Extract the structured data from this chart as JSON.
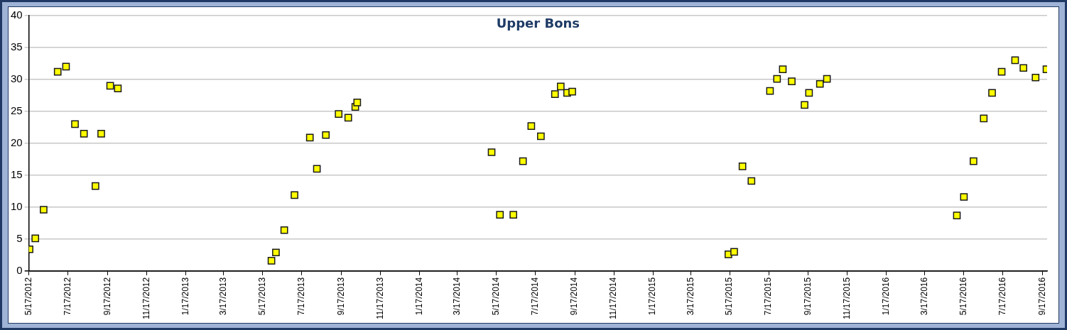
{
  "chart_data": {
    "type": "scatter",
    "title": "Upper Bons",
    "x": [
      "2012-05-18",
      "2012-05-27",
      "2012-06-09",
      "2012-07-01",
      "2012-07-14",
      "2012-07-28",
      "2012-08-11",
      "2012-08-29",
      "2012-09-07",
      "2012-09-21",
      "2012-10-03",
      "2013-05-31",
      "2013-06-07",
      "2013-06-20",
      "2013-07-06",
      "2013-07-30",
      "2013-08-10",
      "2013-08-24",
      "2013-09-13",
      "2013-09-28",
      "2013-10-09",
      "2013-10-12",
      "2014-05-10",
      "2014-05-23",
      "2014-06-13",
      "2014-06-28",
      "2014-07-11",
      "2014-07-26",
      "2014-08-17",
      "2014-08-26",
      "2014-09-05",
      "2014-09-13",
      "2015-05-15",
      "2015-05-24",
      "2015-06-06",
      "2015-06-20",
      "2015-07-19",
      "2015-07-30",
      "2015-08-08",
      "2015-08-22",
      "2015-09-11",
      "2015-09-18",
      "2015-10-05",
      "2015-10-16",
      "2016-05-06",
      "2016-05-17",
      "2016-06-01",
      "2016-06-17",
      "2016-06-30",
      "2016-07-15",
      "2016-08-05",
      "2016-08-18",
      "2016-09-06",
      "2016-09-23"
    ],
    "series": [
      {
        "color": "#ffff00",
        "values": [
          3.4,
          5.1,
          9.6,
          31.2,
          32.0,
          23.0,
          21.5,
          13.3,
          21.5,
          29.0,
          28.6,
          1.6,
          2.9,
          6.4,
          11.9,
          20.9,
          16.0,
          21.3,
          24.6,
          24.0,
          25.7,
          26.4,
          18.6,
          8.8,
          8.8,
          17.2,
          22.7,
          21.1,
          27.7,
          28.9,
          27.9,
          28.1,
          2.6,
          3.0,
          16.4,
          14.1,
          28.2,
          30.1,
          31.6,
          29.7,
          26.0,
          27.9,
          29.3,
          30.1,
          8.7,
          11.6,
          17.2,
          23.9,
          27.9,
          31.2,
          33.0,
          31.8,
          30.3,
          31.6
        ]
      }
    ],
    "xlim": [
      "2012-05-17",
      "2016-09-24"
    ],
    "xticks": [
      {
        "value": "2012-05-17",
        "label": "5/17/2012"
      },
      {
        "value": "2012-07-17",
        "label": "7/17/2012"
      },
      {
        "value": "2012-09-17",
        "label": "9/17/2012"
      },
      {
        "value": "2012-11-17",
        "label": "11/17/2012"
      },
      {
        "value": "2013-01-17",
        "label": "1/17/2013"
      },
      {
        "value": "2013-03-17",
        "label": "3/17/2013"
      },
      {
        "value": "2013-05-17",
        "label": "5/17/2013"
      },
      {
        "value": "2013-07-17",
        "label": "7/17/2013"
      },
      {
        "value": "2013-09-17",
        "label": "9/17/2013"
      },
      {
        "value": "2013-11-17",
        "label": "11/17/2013"
      },
      {
        "value": "2014-01-17",
        "label": "1/17/2014"
      },
      {
        "value": "2014-03-17",
        "label": "3/17/2014"
      },
      {
        "value": "2014-05-17",
        "label": "5/17/2014"
      },
      {
        "value": "2014-07-17",
        "label": "7/17/2014"
      },
      {
        "value": "2014-09-17",
        "label": "9/17/2014"
      },
      {
        "value": "2014-11-17",
        "label": "11/17/2014"
      },
      {
        "value": "2015-01-17",
        "label": "1/17/2015"
      },
      {
        "value": "2015-03-17",
        "label": "3/17/2015"
      },
      {
        "value": "2015-05-17",
        "label": "5/17/2015"
      },
      {
        "value": "2015-07-17",
        "label": "7/17/2015"
      },
      {
        "value": "2015-09-17",
        "label": "9/17/2015"
      },
      {
        "value": "2015-11-17",
        "label": "11/17/2015"
      },
      {
        "value": "2016-01-17",
        "label": "1/17/2016"
      },
      {
        "value": "2016-03-17",
        "label": "3/17/2016"
      },
      {
        "value": "2016-05-17",
        "label": "5/17/2016"
      },
      {
        "value": "2016-07-17",
        "label": "7/17/2016"
      },
      {
        "value": "2016-09-17",
        "label": "9/17/2016"
      }
    ],
    "ylim": [
      0,
      40
    ],
    "yticks": [
      0,
      5,
      10,
      15,
      20,
      25,
      30,
      35,
      40
    ],
    "grid": "y",
    "legend": false,
    "marker": "square"
  }
}
